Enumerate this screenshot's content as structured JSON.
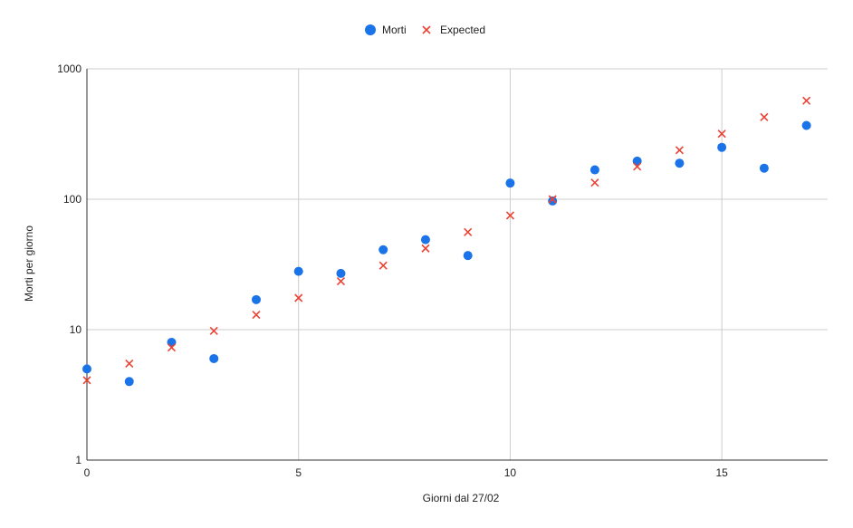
{
  "chart_data": {
    "type": "scatter",
    "title": "",
    "xlabel": "Giorni dal 27/02",
    "ylabel": "Morti per giorno",
    "xlim": [
      0,
      17.5
    ],
    "ylim": [
      1,
      1000
    ],
    "y_scale": "log",
    "x_ticks": [
      0,
      5,
      10,
      15
    ],
    "x_tick_labels": [
      "0",
      "5",
      "10",
      "15"
    ],
    "y_ticks": [
      1,
      10,
      100,
      1000
    ],
    "y_tick_labels": [
      "1",
      "10",
      "100",
      "1000"
    ],
    "grid": true,
    "legend_position": "top-center",
    "series": [
      {
        "name": "Morti",
        "marker": "circle",
        "color": "#1a73e8",
        "x": [
          0,
          1,
          2,
          3,
          4,
          5,
          6,
          7,
          8,
          9,
          10,
          11,
          12,
          13,
          14,
          15,
          16,
          17
        ],
        "y": [
          5,
          4,
          8,
          6,
          17,
          28,
          27,
          41,
          49,
          37,
          133,
          97,
          168,
          196,
          189,
          250,
          173,
          368
        ]
      },
      {
        "name": "Expected",
        "marker": "x",
        "color": "#ea4335",
        "x": [
          0,
          1,
          2,
          3,
          4,
          5,
          6,
          7,
          8,
          9,
          10,
          11,
          12,
          13,
          14,
          15,
          16,
          17
        ],
        "y": [
          4.1,
          5.5,
          7.3,
          9.8,
          13,
          17.5,
          23.5,
          31,
          42,
          56,
          75,
          100,
          134,
          178,
          238,
          318,
          426,
          570
        ]
      }
    ]
  }
}
